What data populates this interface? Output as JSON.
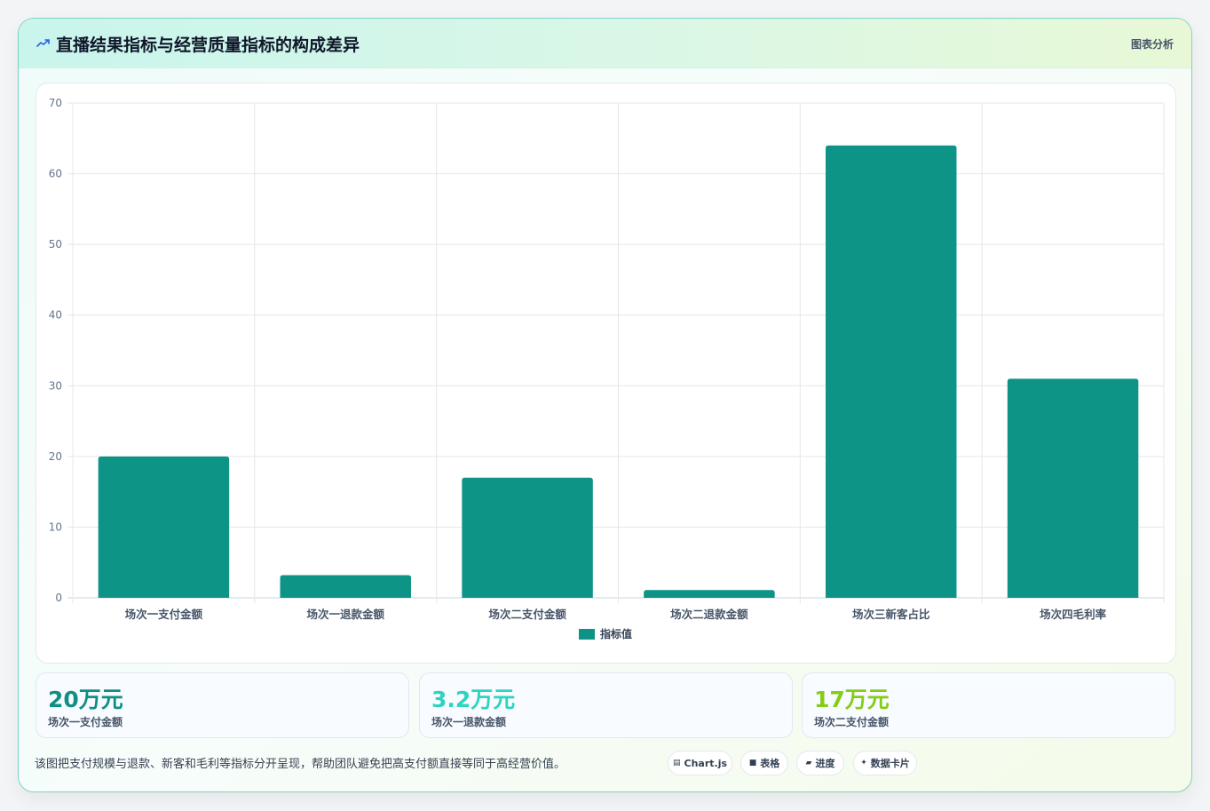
{
  "header": {
    "icon": "line-chart-icon",
    "title": "直播结果指标与经营质量指标的构成差异",
    "tag": "图表分析"
  },
  "chart_data": {
    "type": "bar",
    "categories": [
      "场次一支付金额",
      "场次一退款金额",
      "场次二支付金额",
      "场次二退款金额",
      "场次三新客占比",
      "场次四毛利率"
    ],
    "series": [
      {
        "name": "指标值",
        "values": [
          20,
          3.2,
          17,
          1.1,
          64,
          31
        ]
      }
    ],
    "ylim": [
      0,
      70
    ],
    "yticks": [
      0,
      10,
      20,
      30,
      40,
      50,
      60,
      70
    ],
    "grid": true,
    "legend": "bottom",
    "color": "#0e9486"
  },
  "stats": [
    {
      "value": "20万元",
      "label": "场次一支付金额",
      "color": "#0f8f83"
    },
    {
      "value": "3.2万元",
      "label": "场次一退款金额",
      "color": "#2dd4bf"
    },
    {
      "value": "17万元",
      "label": "场次二支付金额",
      "color": "#84cc16"
    }
  ],
  "footer": {
    "note": "该图把支付规模与退款、新客和毛利等指标分开呈现，帮助团队避免把高支付额直接等同于高经营价值。",
    "pills": [
      {
        "icon": "chart-icon",
        "glyph": "▤",
        "label": "Chart.js"
      },
      {
        "icon": "table-icon",
        "glyph": "■",
        "label": "表格"
      },
      {
        "icon": "progress-icon",
        "glyph": "▰",
        "label": "进度"
      },
      {
        "icon": "sparkle-icon",
        "glyph": "✦",
        "label": "数据卡片"
      }
    ]
  }
}
